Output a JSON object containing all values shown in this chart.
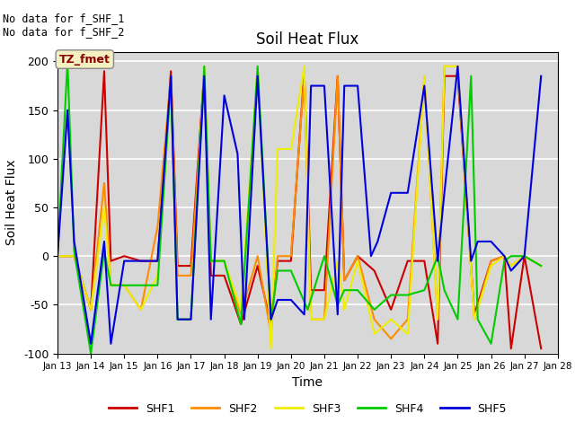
{
  "title": "Soil Heat Flux",
  "xlabel": "Time",
  "ylabel": "Soil Heat Flux",
  "xlim": [
    13,
    28
  ],
  "ylim": [
    -100,
    210
  ],
  "yticks": [
    -100,
    -50,
    0,
    50,
    100,
    150,
    200
  ],
  "xtick_labels": [
    "Jan 13",
    "Jan 14",
    "Jan 15",
    "Jan 16",
    "Jan 17",
    "Jan 18",
    "Jan 19",
    "Jan 20",
    "Jan 21",
    "Jan 22",
    "Jan 23",
    "Jan 24",
    "Jan 25",
    "Jan 26",
    "Jan 27",
    "Jan 28"
  ],
  "xtick_positions": [
    13,
    14,
    15,
    16,
    17,
    18,
    19,
    20,
    21,
    22,
    23,
    24,
    25,
    26,
    27,
    28
  ],
  "background_color": "#d8d8d8",
  "annotation_text": "No data for f_SHF_1\nNo data for f_SHF_2",
  "box_label": "TZ_fmet",
  "series": {
    "SHF1": {
      "color": "#cc0000",
      "x": [
        13,
        13.5,
        14,
        14.4,
        14.6,
        15,
        15.5,
        16,
        16.4,
        16.6,
        17,
        17.4,
        17.6,
        18,
        18.5,
        19,
        19.4,
        19.6,
        20,
        20.4,
        20.6,
        21,
        21.4,
        21.6,
        22,
        22.5,
        23,
        23.5,
        24,
        24.4,
        24.6,
        25,
        25.5,
        26,
        26.4,
        26.6,
        27,
        27.5
      ],
      "y": [
        0,
        0,
        -55,
        190,
        -5,
        0,
        -5,
        -5,
        190,
        -10,
        -10,
        190,
        -20,
        -20,
        -70,
        -10,
        -70,
        -5,
        -5,
        190,
        -35,
        -35,
        185,
        -25,
        0,
        -15,
        -55,
        -5,
        -5,
        -90,
        185,
        185,
        -60,
        -5,
        0,
        -95,
        0,
        -95
      ]
    },
    "SHF2": {
      "color": "#ff8c00",
      "x": [
        13,
        13.5,
        14,
        14.4,
        14.6,
        15,
        15.5,
        16,
        16.4,
        16.6,
        17,
        17.4,
        17.6,
        18,
        18.5,
        19,
        19.4,
        19.6,
        20,
        20.4,
        20.6,
        21,
        21.4,
        21.6,
        22,
        22.5,
        23,
        23.5,
        24,
        24.4,
        24.6,
        25,
        25.5,
        26,
        26.4,
        26.6,
        27,
        27.5
      ],
      "y": [
        0,
        0,
        -55,
        75,
        -30,
        -30,
        -55,
        30,
        185,
        -20,
        -20,
        185,
        -5,
        -5,
        -60,
        0,
        -80,
        0,
        0,
        185,
        -65,
        -65,
        185,
        -25,
        0,
        -65,
        -85,
        -65,
        185,
        -65,
        195,
        195,
        -65,
        -5,
        0,
        -10,
        0,
        -10
      ]
    },
    "SHF3": {
      "color": "#eeee00",
      "x": [
        13,
        13.5,
        14,
        14.4,
        14.6,
        15,
        15.5,
        16,
        16.4,
        16.6,
        17,
        17.4,
        17.6,
        18,
        18.5,
        19,
        19.4,
        19.6,
        20,
        20.4,
        20.6,
        21,
        21.4,
        21.6,
        22,
        22.5,
        23,
        23.5,
        24,
        24.4,
        24.6,
        25,
        25.5,
        26,
        26.4,
        26.6,
        27,
        27.5
      ],
      "y": [
        0,
        0,
        -55,
        50,
        -30,
        -30,
        -55,
        -20,
        180,
        -65,
        -65,
        195,
        -5,
        -5,
        -55,
        195,
        -95,
        110,
        110,
        195,
        -65,
        -65,
        -5,
        -55,
        -5,
        -80,
        -65,
        -80,
        185,
        -65,
        195,
        195,
        -65,
        -10,
        0,
        -10,
        0,
        -10
      ]
    },
    "SHF4": {
      "color": "#00cc00",
      "x": [
        13,
        13.3,
        13.5,
        14,
        14.4,
        14.6,
        15,
        15.5,
        16,
        16.4,
        16.6,
        17,
        17.4,
        17.6,
        18,
        18.5,
        19,
        19.4,
        19.6,
        20,
        20.5,
        21,
        21.4,
        21.6,
        22,
        22.5,
        23,
        23.5,
        24,
        24.4,
        24.6,
        25,
        25.4,
        25.6,
        26,
        26.4,
        26.6,
        27,
        27.5
      ],
      "y": [
        0,
        200,
        5,
        -100,
        5,
        -30,
        -30,
        -30,
        -30,
        180,
        -65,
        -65,
        195,
        -5,
        -5,
        -70,
        195,
        -65,
        -15,
        -15,
        -55,
        0,
        -50,
        -35,
        -35,
        -55,
        -40,
        -40,
        -35,
        0,
        -35,
        -65,
        185,
        -65,
        -90,
        -5,
        0,
        0,
        -10
      ]
    },
    "SHF5": {
      "color": "#0000dd",
      "x": [
        13,
        13.3,
        13.5,
        14,
        14.4,
        14.6,
        15,
        15.5,
        16,
        16.4,
        16.6,
        17,
        17.4,
        17.6,
        18,
        18.4,
        18.6,
        19,
        19.4,
        19.6,
        20,
        20.4,
        20.6,
        21,
        21.4,
        21.6,
        22,
        22.4,
        22.6,
        23,
        23.5,
        24,
        24.4,
        24.6,
        25,
        25.4,
        25.6,
        26,
        26.4,
        26.6,
        27,
        27.5
      ],
      "y": [
        0,
        150,
        15,
        -90,
        15,
        -90,
        -5,
        -5,
        -5,
        185,
        -65,
        -65,
        185,
        -65,
        165,
        105,
        -65,
        185,
        -65,
        -45,
        -45,
        -60,
        175,
        175,
        -60,
        175,
        175,
        0,
        15,
        65,
        65,
        175,
        -5,
        65,
        195,
        -5,
        15,
        15,
        0,
        -15,
        0,
        185
      ]
    }
  },
  "legend": [
    {
      "label": "SHF1",
      "color": "#cc0000"
    },
    {
      "label": "SHF2",
      "color": "#ff8c00"
    },
    {
      "label": "SHF3",
      "color": "#eeee00"
    },
    {
      "label": "SHF4",
      "color": "#00cc00"
    },
    {
      "label": "SHF5",
      "color": "#0000dd"
    }
  ]
}
